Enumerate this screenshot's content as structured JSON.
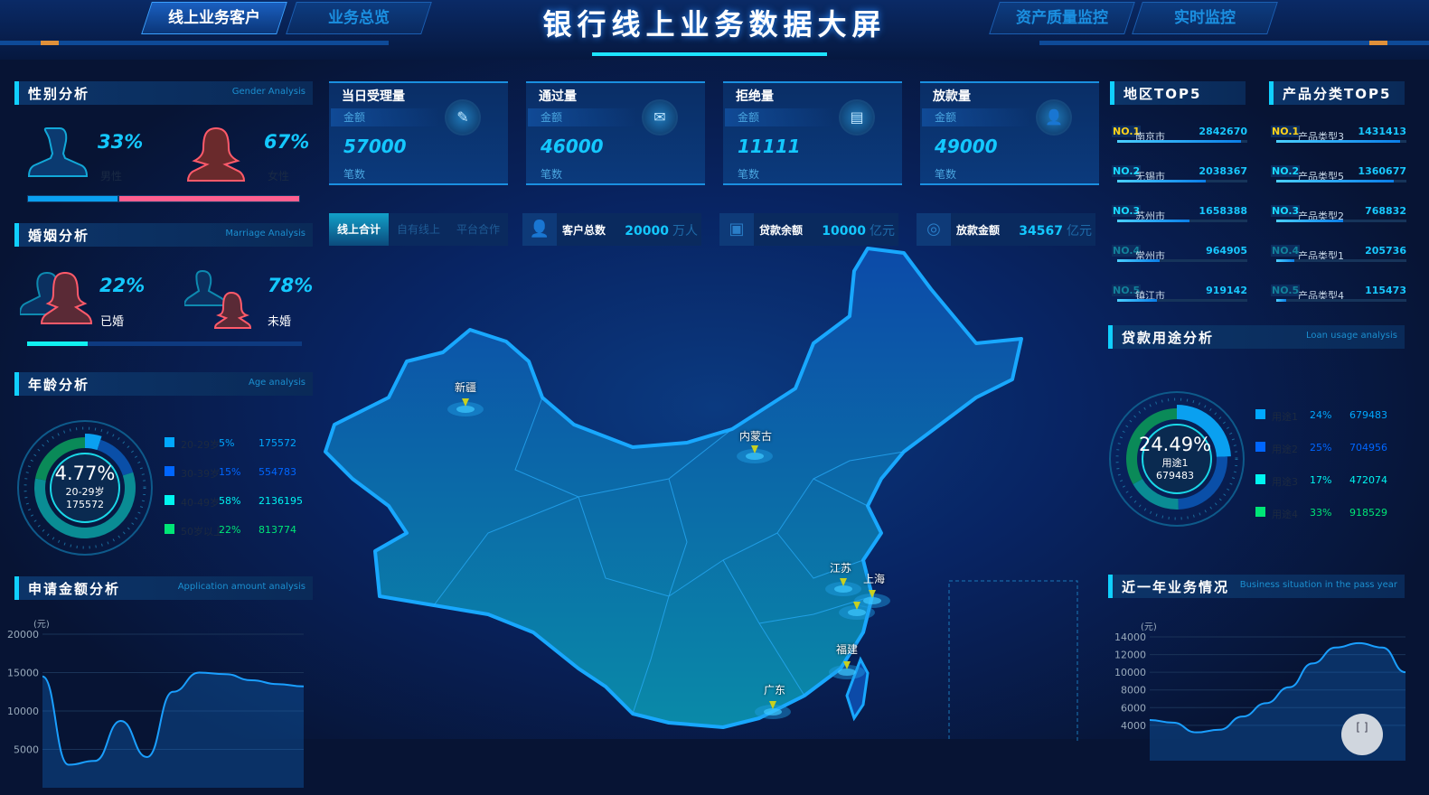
{
  "header": {
    "title": "银行线上业务数据大屏",
    "nav": [
      {
        "label": "线上业务客户",
        "active": true
      },
      {
        "label": "业务总览",
        "active": false
      },
      {
        "label": "资产质量监控",
        "active": false
      },
      {
        "label": "实时监控",
        "active": false
      }
    ]
  },
  "gender": {
    "title": "性别分析",
    "subtitle": "Gender Analysis",
    "male": {
      "pct": "33%",
      "label": "男性",
      "value": 33
    },
    "female": {
      "pct": "67%",
      "label": "女性",
      "value": 67
    }
  },
  "marriage": {
    "title": "婚姻分析",
    "subtitle": "Marriage Analysis",
    "married": {
      "pct": "22%",
      "label": "已婚",
      "value": 22
    },
    "unmarried": {
      "pct": "78%",
      "label": "未婚",
      "value": 78
    }
  },
  "age": {
    "title": "年龄分析",
    "subtitle": "Age analysis",
    "center": {
      "pct": "4.77%",
      "label": "20-29岁",
      "value": "175572"
    },
    "items": [
      {
        "name": "20-29岁",
        "pct": "5%",
        "value": "175572",
        "share": 5,
        "color": "#00a8ff",
        "ring": "#0aa0f0"
      },
      {
        "name": "30-39岁",
        "pct": "15%",
        "value": "554783",
        "share": 15,
        "color": "#0066ff",
        "ring": "#0a4fa8"
      },
      {
        "name": "40-49岁",
        "pct": "58%",
        "value": "2136195",
        "share": 58,
        "color": "#00f5f0",
        "ring": "#0a8c94"
      },
      {
        "name": "50岁以上",
        "pct": "22%",
        "value": "813774",
        "share": 22,
        "color": "#00e676",
        "ring": "#0a8a58"
      }
    ]
  },
  "application": {
    "title": "申请金额分析",
    "subtitle": "Application amount analysis"
  },
  "cards": [
    {
      "title": "当日受理量",
      "amount_label": "金额",
      "value": "57000",
      "count_label": "笔数",
      "icon": "edit-document-icon"
    },
    {
      "title": "通过量",
      "amount_label": "金额",
      "value": "46000",
      "count_label": "笔数",
      "icon": "mail-check-icon"
    },
    {
      "title": "拒绝量",
      "amount_label": "金额",
      "value": "11111",
      "count_label": "笔数",
      "icon": "document-reject-icon"
    },
    {
      "title": "放款量",
      "amount_label": "金额",
      "value": "49000",
      "count_label": "笔数",
      "icon": "user-icon"
    }
  ],
  "subtabs": [
    {
      "label": "线上合计",
      "active": true
    },
    {
      "label": "自有线上",
      "active": false
    },
    {
      "label": "平台合作",
      "active": false
    }
  ],
  "stats": [
    {
      "label": "客户总数",
      "value": "20000",
      "unit": "万人",
      "icon": "customer-icon"
    },
    {
      "label": "贷款余额",
      "value": "10000",
      "unit": "亿元",
      "icon": "wallet-icon"
    },
    {
      "label": "放款金额",
      "value": "34567",
      "unit": "亿元",
      "icon": "coin-icon"
    }
  ],
  "map": {
    "labels": [
      "新疆",
      "内蒙古",
      "江苏",
      "上海",
      "福建",
      "广东"
    ]
  },
  "region_top5": {
    "title": "地区TOP5",
    "items": [
      {
        "rank": "NO.1",
        "name": "南京市",
        "value": "2842670",
        "num": 2842670
      },
      {
        "rank": "NO.2",
        "name": "无锡市",
        "value": "2038367",
        "num": 2038367
      },
      {
        "rank": "NO.3",
        "name": "苏州市",
        "value": "1658388",
        "num": 1658388
      },
      {
        "rank": "NO.4",
        "name": "常州市",
        "value": "964905",
        "num": 964905
      },
      {
        "rank": "NO.5",
        "name": "镇江市",
        "value": "919142",
        "num": 919142
      }
    ]
  },
  "product_top5": {
    "title": "产品分类TOP5",
    "items": [
      {
        "rank": "NO.1",
        "name": "产品类型3",
        "value": "1431413",
        "num": 1431413
      },
      {
        "rank": "NO.2",
        "name": "产品类型5",
        "value": "1360677",
        "num": 1360677
      },
      {
        "rank": "NO.3",
        "name": "产品类型2",
        "value": "768832",
        "num": 768832
      },
      {
        "rank": "NO.4",
        "name": "产品类型1",
        "value": "205736",
        "num": 205736
      },
      {
        "rank": "NO.5",
        "name": "产品类型4",
        "value": "115473",
        "num": 115473
      }
    ]
  },
  "loan_usage": {
    "title": "贷款用途分析",
    "subtitle": "Loan usage analysis",
    "center": {
      "pct": "24.49%",
      "label": "用途1",
      "value": "679483"
    },
    "items": [
      {
        "name": "用途1",
        "pct": "24%",
        "value": "679483",
        "share": 24,
        "color": "#00a8ff",
        "ring": "#0aa0f0"
      },
      {
        "name": "用途2",
        "pct": "25%",
        "value": "704956",
        "share": 25,
        "color": "#0066ff",
        "ring": "#0a4fa8"
      },
      {
        "name": "用途3",
        "pct": "17%",
        "value": "472074",
        "share": 17,
        "color": "#00f5f0",
        "ring": "#0a8c94"
      },
      {
        "name": "用途4",
        "pct": "33%",
        "value": "918529",
        "share": 33,
        "color": "#00e676",
        "ring": "#0a8a58"
      }
    ]
  },
  "business": {
    "title": "近一年业务情况",
    "subtitle": "Business situation in the pass year"
  },
  "chart_data": [
    {
      "type": "area",
      "ylabel": "(元)",
      "ylim": [
        0,
        20000
      ],
      "yticks": [
        5000,
        10000,
        15000,
        20000
      ],
      "grid": true,
      "values": [
        14500,
        3000,
        3500,
        8700,
        4000,
        12500,
        15000,
        14800,
        14000,
        13500,
        13200
      ],
      "color": "#1a9fff"
    },
    {
      "type": "area",
      "ylabel": "(元)",
      "ylim": [
        0,
        14000
      ],
      "yticks": [
        4000,
        6000,
        8000,
        10000,
        12000,
        14000
      ],
      "grid": true,
      "values": [
        4600,
        4300,
        3200,
        3500,
        5000,
        6500,
        8300,
        11000,
        12800,
        13300,
        12800,
        10000
      ],
      "color": "#1a9fff"
    }
  ]
}
